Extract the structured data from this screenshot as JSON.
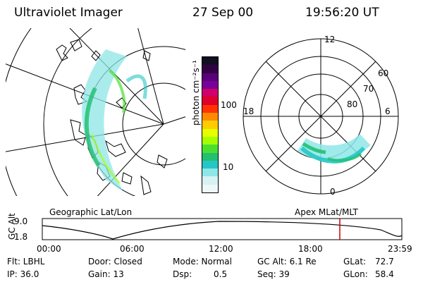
{
  "header": {
    "instrument": "Ultraviolet Imager",
    "date": "27 Sep 00",
    "time": "19:56:20 UT"
  },
  "colorbar": {
    "unit_label": "photon cm⁻²s⁻¹",
    "ticks": [
      "100",
      "10"
    ],
    "colors": [
      "#101020",
      "#330044",
      "#5a007a",
      "#7a009a",
      "#d0006a",
      "#e0002a",
      "#ff3300",
      "#ff8a00",
      "#ffcc00",
      "#e6ff00",
      "#a6ff00",
      "#4be030",
      "#22c070",
      "#26c6c6",
      "#8ee6e6",
      "#d6f2f2",
      "#eef8f8"
    ]
  },
  "right_panel": {
    "labels": [
      "12",
      "60",
      "70",
      "80",
      "18",
      "6",
      "0"
    ]
  },
  "timeline": {
    "title_left": "Geographic Lat/Lon",
    "title_right": "Apex MLat/MLT",
    "y_label": "GC Alt",
    "y_ticks": [
      "9.0",
      "1.8"
    ],
    "x_ticks": [
      "00:00",
      "06:00",
      "12:00",
      "18:00",
      "23:59"
    ],
    "marker_color": "#cc0000"
  },
  "info": {
    "flt": "Flt: LBHL",
    "ip": "IP: 36.0",
    "door": "Door: Closed",
    "gain": "Gain: 13",
    "mode": "Mode: Normal",
    "dsp_label": "Dsp:",
    "dsp_value": "0.5",
    "gcalt": "GC Alt: 6.1 Re",
    "seq": "Seq: 39",
    "glat_label": "GLat:",
    "glat_value": "72.7",
    "glon_label": "GLon:",
    "glon_value": "58.4"
  }
}
